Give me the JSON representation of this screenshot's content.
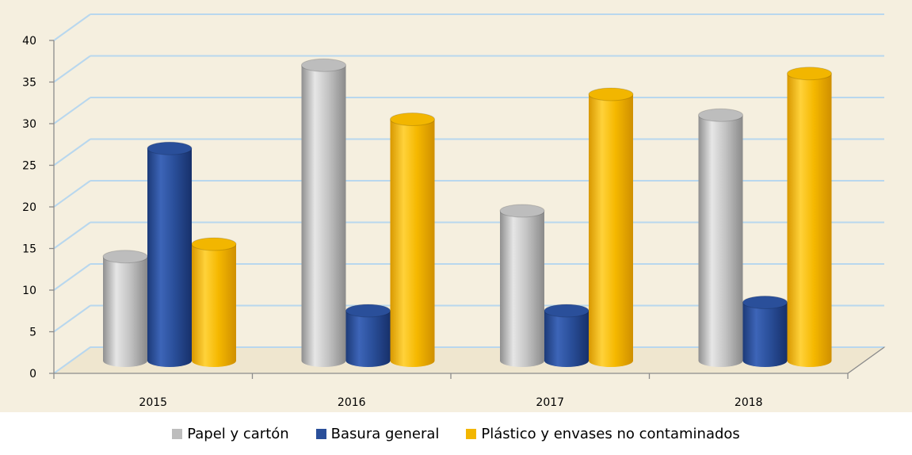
{
  "chart_data": {
    "type": "bar",
    "categories": [
      "2015",
      "2016",
      "2017",
      "2018"
    ],
    "series": [
      {
        "name": "Papel y cartón",
        "values": [
          12.5,
          35.5,
          18,
          29.5
        ],
        "color": "#bdbdbd"
      },
      {
        "name": "Basura general",
        "values": [
          25.5,
          6,
          6,
          7
        ],
        "color": "#2a4f9a"
      },
      {
        "name": "Plástico y envases no contaminados",
        "values": [
          14,
          29,
          32,
          34.5
        ],
        "color": "#f2b600"
      }
    ],
    "y_ticks": [
      "0",
      "5",
      "10",
      "15",
      "20",
      "25",
      "30",
      "35",
      "40"
    ],
    "ylim": [
      0,
      40
    ],
    "grid": true,
    "legend_position": "bottom",
    "wall_color": "#f5efdf",
    "gridline_color": "#b8d7ee"
  }
}
